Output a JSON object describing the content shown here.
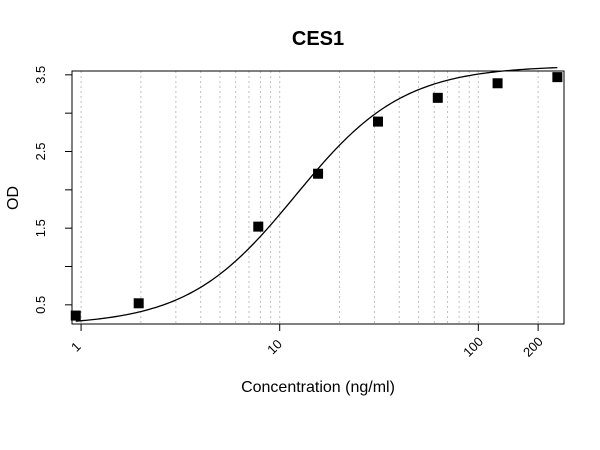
{
  "chart_data": {
    "type": "scatter",
    "title": "CES1",
    "xlabel": "Concentration (ng/ml)",
    "ylabel": "OD",
    "x_scale": "log",
    "xlim": [
      0.9,
      270
    ],
    "ylim": [
      0.25,
      3.55
    ],
    "x_ticks": [
      1,
      10,
      100,
      200
    ],
    "x_tick_labels": [
      "1",
      "10",
      "100",
      "200"
    ],
    "y_ticks": [
      0.5,
      1,
      1.5,
      2,
      2.5,
      3,
      3.5
    ],
    "y_tick_labels": [
      "0.5",
      "",
      "1.5",
      "",
      "2.5",
      "",
      "3.5"
    ],
    "grid": "vertical dotted at log minor ticks",
    "series": [
      {
        "marker": "square",
        "x": [
          0.94,
          1.95,
          7.8,
          15.6,
          31.25,
          62.5,
          125,
          250
        ],
        "y": [
          0.36,
          0.52,
          1.52,
          2.21,
          2.89,
          3.2,
          3.39,
          3.47
        ]
      }
    ],
    "fit_curve": {
      "type": "4PL",
      "color": "#000000"
    },
    "colors": {
      "marker": "#000000",
      "grid": "#bfbfbf",
      "axis": "#000000"
    }
  }
}
